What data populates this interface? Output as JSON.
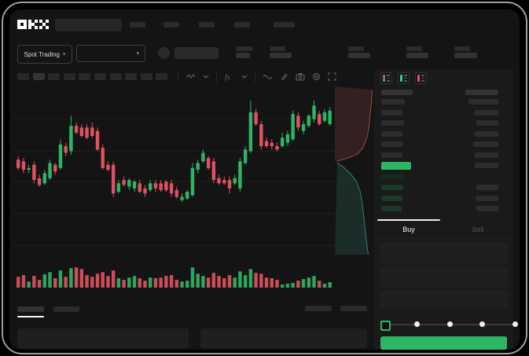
{
  "app": {
    "logo_text": "OKX"
  },
  "colors": {
    "up_green": "#2eb564",
    "down_red": "#de5261",
    "buy_button_green": "#2eb564",
    "bid_row_green": "#1b3a28",
    "app_bg": "#141414",
    "panel_bg": "#1a1a1a"
  },
  "topnav": {
    "search_placeholder_width": 85,
    "nav_placeholder_widths": [
      20,
      20,
      20,
      20
    ],
    "right_placeholder_width": 27
  },
  "subheader": {
    "market_type_selector": {
      "label": "Spot Trading",
      "chevron": "▾"
    },
    "pair_selector": {
      "chevron": "▾"
    },
    "ticker_stat_groups": [
      {
        "top_w": 22,
        "bottom_w": 18
      },
      {
        "top_w": 20,
        "bottom_w": 28
      },
      {
        "top_w": 20,
        "bottom_w": 28
      },
      {
        "top_w": 20,
        "bottom_w": 28
      },
      {
        "top_w": 20,
        "bottom_w": 29
      }
    ]
  },
  "toolbar": {
    "timeframe_slot_count": 10,
    "icons": [
      "candlestick-type-icon",
      "chevron-down-icon",
      "indicator-fx-icon",
      "chevron-down-icon",
      "line-wave-icon",
      "pencil-icon",
      "camera-icon",
      "settings-gear-icon",
      "fullscreen-icon"
    ]
  },
  "chart_data": [
    {
      "type": "candlestick",
      "title": "",
      "axis_labels_visible": false,
      "ylim": [
        30,
        100
      ],
      "gridlines_price": [
        83,
        64,
        46,
        27,
        8
      ],
      "legend_position": "none",
      "candles": [
        [
          59,
          61,
          53,
          54
        ],
        [
          58,
          60,
          51,
          53
        ],
        [
          53,
          56,
          51,
          54
        ],
        [
          56,
          58,
          45,
          47
        ],
        [
          48,
          50,
          43,
          44
        ],
        [
          45,
          53,
          44,
          51
        ],
        [
          48,
          59,
          47,
          57
        ],
        [
          56,
          57,
          50,
          52
        ],
        [
          54,
          71,
          53,
          68
        ],
        [
          67,
          69,
          61,
          63
        ],
        [
          64,
          85,
          62,
          79
        ],
        [
          79,
          81,
          74,
          75
        ],
        [
          78,
          80,
          72,
          73
        ],
        [
          78,
          80,
          71,
          72
        ],
        [
          78,
          81,
          72,
          73
        ],
        [
          76,
          78,
          64,
          65
        ],
        [
          66,
          68,
          53,
          54
        ],
        [
          56,
          58,
          52,
          53
        ],
        [
          56,
          58,
          37,
          39
        ],
        [
          40,
          47,
          39,
          45
        ],
        [
          47,
          49,
          43,
          44
        ],
        [
          43,
          48,
          41,
          47
        ],
        [
          42,
          47,
          40,
          46
        ],
        [
          45,
          47,
          39,
          40
        ],
        [
          42,
          44,
          37,
          39
        ],
        [
          41,
          47,
          40,
          45
        ],
        [
          45,
          47,
          40,
          42
        ],
        [
          45,
          47,
          40,
          41
        ],
        [
          46,
          47,
          40,
          41
        ],
        [
          45,
          47,
          37,
          39
        ],
        [
          41,
          43,
          36,
          37
        ],
        [
          35,
          39,
          34,
          37
        ],
        [
          36,
          41,
          35,
          40
        ],
        [
          38,
          57,
          37,
          54
        ],
        [
          53,
          59,
          51,
          57
        ],
        [
          58,
          65,
          57,
          63
        ],
        [
          60,
          61,
          53,
          54
        ],
        [
          58,
          60,
          45,
          47
        ],
        [
          48,
          50,
          44,
          45
        ],
        [
          47,
          49,
          44,
          45
        ],
        [
          47,
          49,
          39,
          42
        ],
        [
          45,
          50,
          44,
          48
        ],
        [
          42,
          60,
          40,
          58
        ],
        [
          57,
          67,
          56,
          65
        ],
        [
          64,
          94,
          63,
          87
        ],
        [
          87,
          89,
          79,
          80
        ],
        [
          80,
          82,
          65,
          67
        ],
        [
          70,
          72,
          66,
          67
        ],
        [
          69,
          71,
          65,
          67
        ],
        [
          67,
          69,
          64,
          65
        ],
        [
          67,
          75,
          66,
          72
        ],
        [
          69,
          76,
          67,
          74
        ],
        [
          71,
          88,
          70,
          86
        ],
        [
          85,
          87,
          76,
          78
        ],
        [
          76,
          82,
          74,
          80
        ],
        [
          79,
          86,
          78,
          85
        ],
        [
          83,
          94,
          81,
          91
        ],
        [
          86,
          88,
          79,
          80
        ],
        [
          82,
          89,
          81,
          87
        ],
        [
          80,
          90,
          79,
          88
        ]
      ],
      "volume": [
        53,
        61,
        30,
        57,
        38,
        65,
        76,
        46,
        84,
        53,
        95,
        99,
        91,
        61,
        53,
        68,
        76,
        57,
        84,
        46,
        38,
        49,
        57,
        46,
        34,
        49,
        46,
        49,
        57,
        61,
        38,
        30,
        34,
        99,
        68,
        57,
        49,
        72,
        57,
        46,
        61,
        49,
        80,
        61,
        91,
        72,
        68,
        49,
        46,
        38,
        15,
        19,
        23,
        34,
        42,
        49,
        57,
        34,
        19,
        27
      ]
    },
    {
      "type": "area",
      "name": "market-depth",
      "orientation": "vertical",
      "asks_line": [
        [
          0.95,
          0.02
        ],
        [
          0.93,
          0.1
        ],
        [
          0.9,
          0.16
        ],
        [
          0.88,
          0.22
        ],
        [
          0.84,
          0.28
        ],
        [
          0.78,
          0.33
        ],
        [
          0.7,
          0.37
        ],
        [
          0.58,
          0.4
        ],
        [
          0.4,
          0.42
        ],
        [
          0.18,
          0.435
        ],
        [
          0.06,
          0.445
        ]
      ],
      "bids_line": [
        [
          0.06,
          0.455
        ],
        [
          0.22,
          0.48
        ],
        [
          0.4,
          0.52
        ],
        [
          0.55,
          0.565
        ],
        [
          0.64,
          0.62
        ],
        [
          0.7,
          0.7
        ],
        [
          0.74,
          0.78
        ],
        [
          0.78,
          0.87
        ],
        [
          0.82,
          0.95
        ],
        [
          0.85,
          1.0
        ]
      ],
      "colors": {
        "asks": "#c25b5b",
        "bids": "#38a38d"
      }
    }
  ],
  "order_book": {
    "view_icons": [
      "orderbook-split-view-icon",
      "orderbook-bids-view-icon",
      "orderbook-asks-view-icon"
    ],
    "header": {
      "left_w": 40,
      "right_w": 42
    },
    "asks": [
      {
        "l": 30,
        "r": 38
      },
      {
        "l": 27,
        "r": 30
      },
      {
        "l": 29,
        "r": 28
      },
      {
        "l": 27,
        "r": 30
      },
      {
        "l": 28,
        "r": 32
      },
      {
        "l": 27,
        "r": 30
      }
    ],
    "price_row": {
      "green_w": 38,
      "right_w": 30
    },
    "bids": [
      {
        "l": 30,
        "r": 0
      },
      {
        "l": 28,
        "r": 28
      },
      {
        "l": 27,
        "r": 29
      },
      {
        "l": 26,
        "r": 28
      }
    ]
  },
  "trade_panel": {
    "tabs": [
      {
        "label": "Buy",
        "active": true
      },
      {
        "label": "Sell",
        "active": false
      }
    ],
    "field_placeholder_count": 3,
    "slider": {
      "stops": [
        0,
        25,
        50,
        75,
        100
      ],
      "value": 0
    },
    "submit_button": {
      "label": "",
      "color": "#2eb564"
    }
  },
  "bottom_panel": {
    "tab_placeholders": [
      {
        "active": true
      },
      {
        "active": false
      }
    ],
    "right_placeholder_count": 2,
    "table_placeholder_count": 2
  }
}
